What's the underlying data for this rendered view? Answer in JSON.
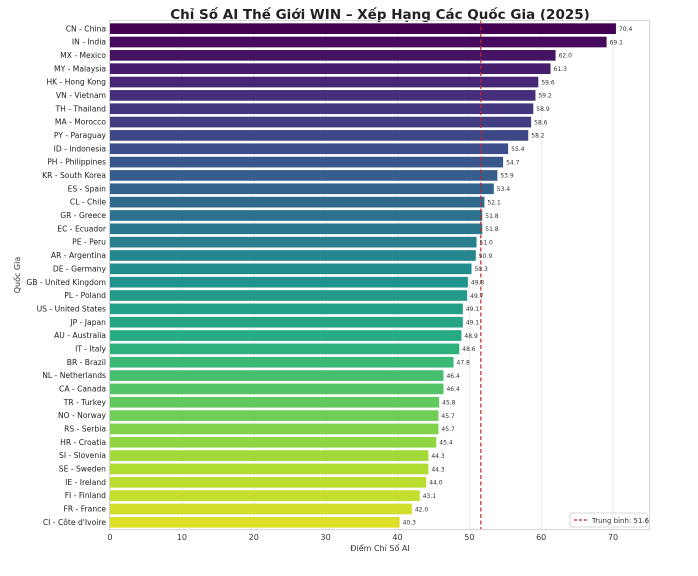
{
  "chart_data": {
    "type": "bar",
    "orientation": "horizontal",
    "title": "Chỉ Số AI Thế Giới WIN – Xếp Hạng Các Quốc Gia (2025)",
    "xlabel": "Điểm Chỉ Số AI",
    "ylabel": "Quốc Gia",
    "xlim": [
      0,
      75
    ],
    "xticks": [
      "0",
      "10",
      "20",
      "30",
      "40",
      "50",
      "60",
      "70"
    ],
    "grid": "vertical",
    "legend_position": "bottom-right",
    "reference_line": {
      "label": "Trung bình: 51.6",
      "value": 51.6,
      "color": "#c0262c",
      "style": "dashed"
    },
    "categories": [
      "CN - China",
      "IN - India",
      "MX - Mexico",
      "MY - Malaysia",
      "HK - Hong Kong",
      "VN - Vietnam",
      "TH - Thailand",
      "MA - Morocco",
      "PY - Paraguay",
      "ID - Indonesia",
      "PH - Philippines",
      "KR - South Korea",
      "ES - Spain",
      "CL - Chile",
      "GR - Greece",
      "EC - Ecuador",
      "PE - Peru",
      "AR - Argentina",
      "DE - Germany",
      "GB - United Kingdom",
      "PL - Poland",
      "US - United States",
      "JP - Japan",
      "AU - Australia",
      "IT - Italy",
      "BR - Brazil",
      "NL - Netherlands",
      "CA - Canada",
      "TR - Turkey",
      "NO - Norway",
      "RS - Serbia",
      "HR - Croatia",
      "SI - Slovenia",
      "SE - Sweden",
      "IE - Ireland",
      "FI - Finland",
      "FR - France",
      "CI - Côte d'Ivoire"
    ],
    "values": [
      70.4,
      69.1,
      62.0,
      61.3,
      59.6,
      59.2,
      58.9,
      58.6,
      58.2,
      55.4,
      54.7,
      53.9,
      53.4,
      52.1,
      51.8,
      51.8,
      51.0,
      50.9,
      50.3,
      49.8,
      49.7,
      49.1,
      49.1,
      48.9,
      48.6,
      47.8,
      46.4,
      46.4,
      45.8,
      45.7,
      45.7,
      45.4,
      44.3,
      44.3,
      44.0,
      43.1,
      42.0,
      40.3
    ],
    "value_labels": [
      "70.4",
      "69.1",
      "62.0",
      "61.3",
      "59.6",
      "59.2",
      "58.9",
      "58.6",
      "58.2",
      "55.4",
      "54.7",
      "53.9",
      "53.4",
      "52.1",
      "51.8",
      "51.8",
      "51.0",
      "50.9",
      "50.3",
      "49.8",
      "49.7",
      "49.1",
      "49.1",
      "48.9",
      "48.6",
      "47.8",
      "46.4",
      "46.4",
      "45.8",
      "45.7",
      "45.7",
      "45.4",
      "44.3",
      "44.3",
      "44.0",
      "43.1",
      "42.0",
      "40.3"
    ],
    "palette": "viridis"
  }
}
